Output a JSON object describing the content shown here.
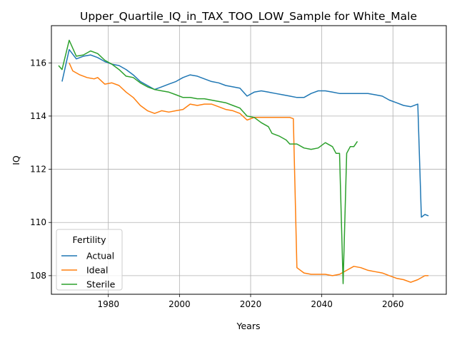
{
  "chart_data": {
    "type": "line",
    "title": "Upper_Quartile_IQ_in_TAX_TOO_LOW_Sample for White_Male",
    "xlabel": "Years",
    "ylabel": "IQ",
    "xlim": [
      1964,
      2075
    ],
    "ylim": [
      107.3,
      117.4
    ],
    "xticks": [
      1980,
      2000,
      2020,
      2040,
      2060
    ],
    "yticks": [
      108,
      110,
      112,
      114,
      116
    ],
    "grid": true,
    "legend": {
      "title": "Fertility",
      "position": "lower-left"
    },
    "series": [
      {
        "name": "Actual",
        "color": "#1f77b4",
        "points": [
          [
            1967,
            115.3
          ],
          [
            1969,
            116.5
          ],
          [
            1971,
            116.15
          ],
          [
            1973,
            116.25
          ],
          [
            1975,
            116.3
          ],
          [
            1977,
            116.2
          ],
          [
            1979,
            116.05
          ],
          [
            1981,
            115.95
          ],
          [
            1983,
            115.9
          ],
          [
            1985,
            115.75
          ],
          [
            1987,
            115.55
          ],
          [
            1989,
            115.3
          ],
          [
            1991,
            115.15
          ],
          [
            1993,
            115.0
          ],
          [
            1995,
            115.1
          ],
          [
            1997,
            115.2
          ],
          [
            1999,
            115.3
          ],
          [
            2001,
            115.45
          ],
          [
            2003,
            115.55
          ],
          [
            2005,
            115.5
          ],
          [
            2007,
            115.4
          ],
          [
            2009,
            115.3
          ],
          [
            2011,
            115.25
          ],
          [
            2013,
            115.15
          ],
          [
            2015,
            115.1
          ],
          [
            2017,
            115.05
          ],
          [
            2019,
            114.75
          ],
          [
            2021,
            114.9
          ],
          [
            2023,
            114.95
          ],
          [
            2025,
            114.9
          ],
          [
            2027,
            114.85
          ],
          [
            2029,
            114.8
          ],
          [
            2031,
            114.75
          ],
          [
            2033,
            114.7
          ],
          [
            2035,
            114.7
          ],
          [
            2037,
            114.85
          ],
          [
            2039,
            114.95
          ],
          [
            2041,
            114.95
          ],
          [
            2043,
            114.9
          ],
          [
            2045,
            114.85
          ],
          [
            2047,
            114.85
          ],
          [
            2049,
            114.85
          ],
          [
            2051,
            114.85
          ],
          [
            2053,
            114.85
          ],
          [
            2055,
            114.8
          ],
          [
            2057,
            114.75
          ],
          [
            2059,
            114.6
          ],
          [
            2061,
            114.5
          ],
          [
            2063,
            114.4
          ],
          [
            2065,
            114.35
          ],
          [
            2067,
            114.45
          ],
          [
            2068,
            110.2
          ],
          [
            2069,
            110.3
          ],
          [
            2070,
            110.25
          ]
        ]
      },
      {
        "name": "Ideal",
        "color": "#ff7f0e",
        "points": [
          [
            1969,
            116.0
          ],
          [
            1970,
            115.7
          ],
          [
            1972,
            115.55
          ],
          [
            1974,
            115.45
          ],
          [
            1976,
            115.4
          ],
          [
            1977,
            115.45
          ],
          [
            1979,
            115.2
          ],
          [
            1981,
            115.25
          ],
          [
            1983,
            115.15
          ],
          [
            1985,
            114.9
          ],
          [
            1987,
            114.7
          ],
          [
            1989,
            114.4
          ],
          [
            1991,
            114.2
          ],
          [
            1993,
            114.1
          ],
          [
            1995,
            114.2
          ],
          [
            1997,
            114.15
          ],
          [
            1999,
            114.2
          ],
          [
            2001,
            114.25
          ],
          [
            2003,
            114.45
          ],
          [
            2005,
            114.4
          ],
          [
            2007,
            114.45
          ],
          [
            2009,
            114.45
          ],
          [
            2011,
            114.35
          ],
          [
            2013,
            114.25
          ],
          [
            2015,
            114.2
          ],
          [
            2017,
            114.1
          ],
          [
            2019,
            113.85
          ],
          [
            2021,
            113.95
          ],
          [
            2023,
            113.95
          ],
          [
            2025,
            113.95
          ],
          [
            2027,
            113.95
          ],
          [
            2029,
            113.95
          ],
          [
            2031,
            113.95
          ],
          [
            2032,
            113.9
          ],
          [
            2033,
            108.3
          ],
          [
            2035,
            108.1
          ],
          [
            2037,
            108.05
          ],
          [
            2039,
            108.05
          ],
          [
            2041,
            108.05
          ],
          [
            2043,
            108.0
          ],
          [
            2045,
            108.05
          ],
          [
            2047,
            108.2
          ],
          [
            2049,
            108.35
          ],
          [
            2051,
            108.3
          ],
          [
            2053,
            108.2
          ],
          [
            2055,
            108.15
          ],
          [
            2057,
            108.1
          ],
          [
            2059,
            108.0
          ],
          [
            2061,
            107.9
          ],
          [
            2063,
            107.85
          ],
          [
            2065,
            107.75
          ],
          [
            2067,
            107.85
          ],
          [
            2069,
            108.0
          ],
          [
            2070,
            108.0
          ]
        ]
      },
      {
        "name": "Sterile",
        "color": "#2ca02c",
        "points": [
          [
            1966,
            115.9
          ],
          [
            1967,
            115.75
          ],
          [
            1969,
            116.85
          ],
          [
            1971,
            116.25
          ],
          [
            1973,
            116.3
          ],
          [
            1975,
            116.45
          ],
          [
            1977,
            116.35
          ],
          [
            1979,
            116.1
          ],
          [
            1981,
            115.95
          ],
          [
            1983,
            115.75
          ],
          [
            1985,
            115.5
          ],
          [
            1987,
            115.45
          ],
          [
            1989,
            115.25
          ],
          [
            1991,
            115.1
          ],
          [
            1993,
            115.0
          ],
          [
            1995,
            114.95
          ],
          [
            1997,
            114.9
          ],
          [
            1999,
            114.8
          ],
          [
            2001,
            114.7
          ],
          [
            2003,
            114.7
          ],
          [
            2005,
            114.65
          ],
          [
            2007,
            114.65
          ],
          [
            2009,
            114.6
          ],
          [
            2011,
            114.55
          ],
          [
            2013,
            114.5
          ],
          [
            2015,
            114.4
          ],
          [
            2017,
            114.3
          ],
          [
            2019,
            114.0
          ],
          [
            2021,
            113.95
          ],
          [
            2023,
            113.75
          ],
          [
            2025,
            113.6
          ],
          [
            2026,
            113.35
          ],
          [
            2028,
            113.25
          ],
          [
            2030,
            113.1
          ],
          [
            2031,
            112.95
          ],
          [
            2033,
            112.95
          ],
          [
            2035,
            112.8
          ],
          [
            2037,
            112.75
          ],
          [
            2039,
            112.8
          ],
          [
            2041,
            113.0
          ],
          [
            2043,
            112.85
          ],
          [
            2044,
            112.6
          ],
          [
            2045,
            112.6
          ],
          [
            2046,
            107.7
          ],
          [
            2047,
            112.6
          ],
          [
            2048,
            112.85
          ],
          [
            2049,
            112.85
          ],
          [
            2050,
            113.05
          ]
        ]
      }
    ]
  }
}
